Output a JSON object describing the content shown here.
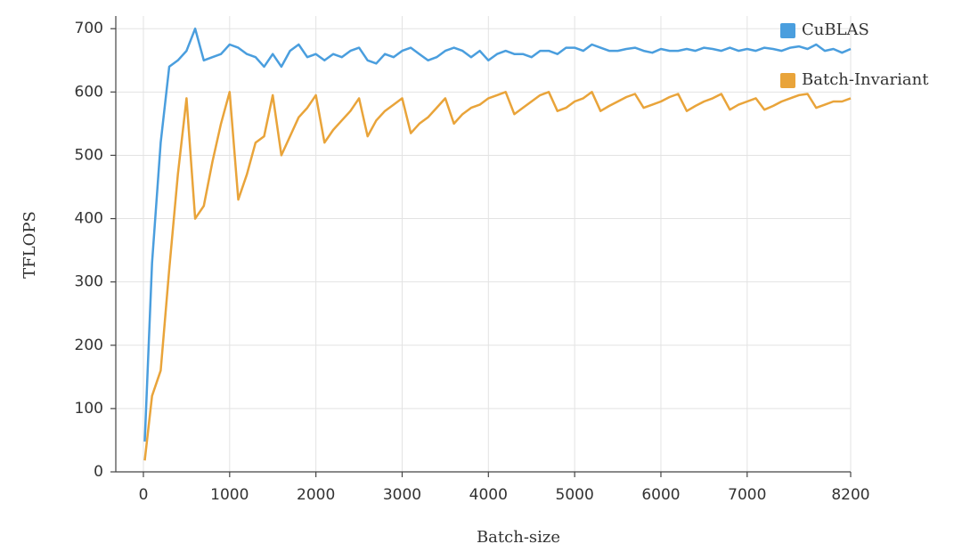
{
  "chart_data": {
    "type": "line",
    "x_label": "Batch-size",
    "y_label": "TFLOPS",
    "x": [
      16,
      100,
      200,
      300,
      400,
      500,
      600,
      700,
      800,
      900,
      1000,
      1100,
      1200,
      1300,
      1400,
      1500,
      1600,
      1700,
      1800,
      1900,
      2000,
      2100,
      2200,
      2300,
      2400,
      2500,
      2600,
      2700,
      2800,
      2900,
      3000,
      3100,
      3200,
      3300,
      3400,
      3500,
      3600,
      3700,
      3800,
      3900,
      4000,
      4100,
      4200,
      4300,
      4400,
      4500,
      4600,
      4700,
      4800,
      4900,
      5000,
      5100,
      5200,
      5300,
      5400,
      5500,
      5600,
      5700,
      5800,
      5900,
      6000,
      6100,
      6200,
      6300,
      6400,
      6500,
      6600,
      6700,
      6800,
      6900,
      7000,
      7100,
      7200,
      7300,
      7400,
      7500,
      7600,
      7700,
      7800,
      7900,
      8000,
      8100,
      8200
    ],
    "series": [
      {
        "name": "CuBLAS",
        "color": "#4a9ede",
        "values": [
          48,
          330,
          520,
          640,
          650,
          665,
          700,
          650,
          655,
          660,
          675,
          670,
          660,
          655,
          640,
          660,
          640,
          665,
          675,
          655,
          660,
          650,
          660,
          655,
          665,
          670,
          650,
          645,
          660,
          655,
          665,
          670,
          660,
          650,
          655,
          665,
          670,
          665,
          655,
          665,
          650,
          660,
          665,
          660,
          660,
          655,
          665,
          665,
          660,
          670,
          670,
          665,
          675,
          670,
          665,
          665,
          668,
          670,
          665,
          662,
          668,
          665,
          665,
          668,
          665,
          670,
          668,
          665,
          670,
          665,
          668,
          665,
          670,
          668,
          665,
          670,
          672,
          668,
          675,
          665,
          668,
          662,
          668
        ]
      },
      {
        "name": "Batch-Invariant",
        "color": "#e9a43a",
        "values": [
          18,
          120,
          160,
          320,
          470,
          590,
          400,
          420,
          490,
          550,
          600,
          430,
          470,
          520,
          530,
          595,
          500,
          530,
          560,
          575,
          595,
          520,
          540,
          555,
          570,
          590,
          530,
          555,
          570,
          580,
          590,
          535,
          550,
          560,
          575,
          590,
          550,
          565,
          575,
          580,
          590,
          595,
          600,
          565,
          575,
          585,
          595,
          600,
          570,
          575,
          585,
          590,
          600,
          570,
          578,
          585,
          592,
          597,
          575,
          580,
          585,
          592,
          597,
          570,
          578,
          585,
          590,
          597,
          572,
          580,
          585,
          590,
          572,
          578,
          585,
          590,
          595,
          597,
          575,
          580,
          585,
          585,
          590
        ]
      }
    ],
    "xlim": [
      -320,
      8200
    ],
    "xticks": [
      0,
      1000,
      2000,
      3000,
      4000,
      5000,
      6000,
      7000,
      8200
    ],
    "ylim": [
      0,
      720
    ],
    "yticks": [
      0,
      100,
      200,
      300,
      400,
      500,
      600,
      700
    ],
    "grid": true,
    "legend": "upper right"
  }
}
